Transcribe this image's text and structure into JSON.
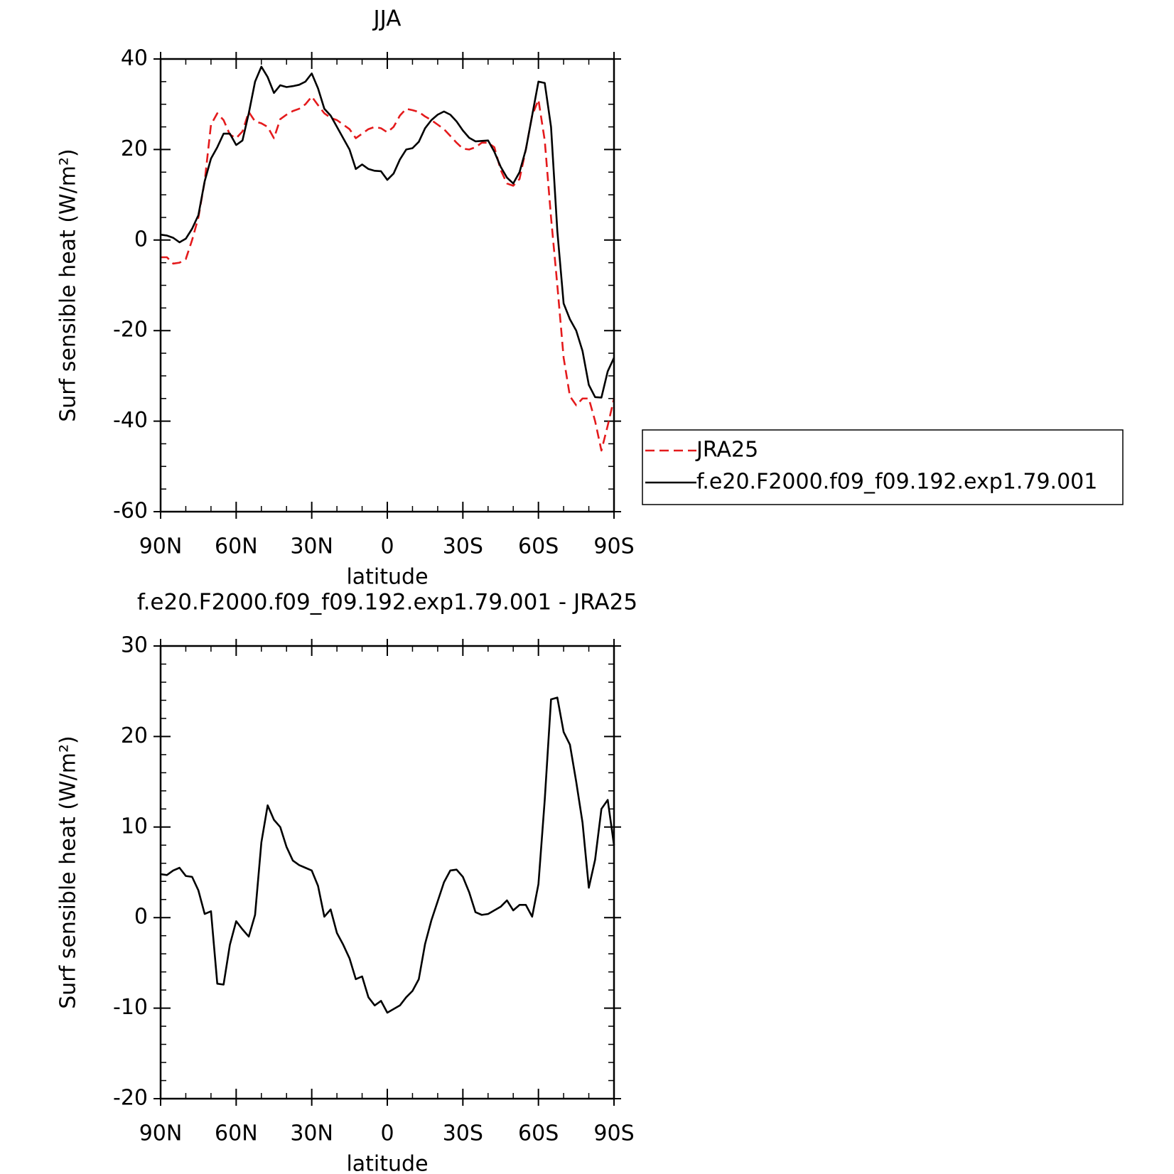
{
  "chart_data": [
    {
      "type": "line",
      "title": "JJA",
      "xlabel": "latitude",
      "ylabel": "Surf sensible heat (W/m²)",
      "xlim": [
        90,
        -90
      ],
      "ylim": [
        -60,
        40
      ],
      "xticks": [
        {
          "value": 90,
          "label": "90N"
        },
        {
          "value": 60,
          "label": "60N"
        },
        {
          "value": 30,
          "label": "30N"
        },
        0,
        {
          "value": -30,
          "label": "30S"
        },
        {
          "value": -60,
          "label": "60S"
        },
        {
          "value": -90,
          "label": "90S"
        }
      ],
      "xminorticks": [
        80,
        70,
        50,
        40,
        20,
        10,
        -10,
        -20,
        -40,
        -50,
        -70,
        -80
      ],
      "yticks": [
        40,
        20,
        0,
        -20,
        -40,
        -60
      ],
      "yminorticks": [
        35,
        30,
        25,
        15,
        10,
        5,
        -5,
        -10,
        -15,
        -25,
        -30,
        -35,
        -45,
        -50,
        -55
      ],
      "legend": "right",
      "x": [
        90,
        87.5,
        85,
        82.5,
        80,
        77.5,
        75,
        72.5,
        70,
        67.5,
        65,
        62.5,
        60,
        57.5,
        55,
        52.5,
        50,
        47.5,
        45,
        42.5,
        40,
        37.5,
        35,
        32.5,
        30,
        27.5,
        25,
        22.5,
        20,
        17.5,
        15,
        12.5,
        10,
        7.5,
        5,
        2.5,
        0,
        -2.5,
        -5,
        -7.5,
        -10,
        -12.5,
        -15,
        -17.5,
        -20,
        -22.5,
        -25,
        -27.5,
        -30,
        -32.5,
        -35,
        -37.5,
        -40,
        -42.5,
        -45,
        -47.5,
        -50,
        -52.5,
        -55,
        -57.5,
        -60,
        -62.5,
        -65,
        -67.5,
        -70,
        -72.5,
        -75,
        -77.5,
        -80,
        -82.5,
        -85,
        -87.5,
        -90
      ],
      "series": [
        {
          "name": "JRA25",
          "color": "#e41a1c",
          "dash": "dashed",
          "values": [
            -3.8,
            -3.8,
            -5.2,
            -5,
            -4.2,
            0,
            5,
            13,
            25.5,
            28,
            26.5,
            23.3,
            22.5,
            24,
            28.3,
            26.2,
            25.8,
            25,
            22.5,
            26.7,
            27.7,
            28.5,
            29,
            30,
            31.7,
            29.8,
            28,
            27,
            26.5,
            25.5,
            24.5,
            22.5,
            23.5,
            24.5,
            25,
            24.7,
            23.8,
            25,
            27.5,
            29,
            28.7,
            28.3,
            27.3,
            26.5,
            25.5,
            24.5,
            23,
            21.5,
            20.2,
            20,
            20.5,
            21.5,
            21.5,
            20.5,
            15.5,
            12.5,
            12,
            13.5,
            20,
            27.5,
            31,
            22,
            5,
            -10,
            -26,
            -34.5,
            -36.5,
            -35,
            -35,
            -40,
            -46.5,
            -41,
            -35
          ]
        },
        {
          "name": "f.e20.F2000.f09_f09.192.exp1.79.001",
          "color": "#000000",
          "dash": "solid",
          "values": [
            1.2,
            1,
            0.5,
            -0.5,
            0.3,
            2.5,
            5.5,
            13,
            18,
            20.5,
            23.5,
            23.5,
            21,
            22,
            28,
            35,
            38.3,
            36,
            32.5,
            34.2,
            33.8,
            34,
            34.3,
            35,
            36.8,
            33.5,
            29,
            27.5,
            25,
            22.5,
            20,
            15.7,
            16.7,
            15.7,
            15.3,
            15.2,
            13.3,
            14.7,
            17.8,
            20,
            20.3,
            21.7,
            24.7,
            26.5,
            27.7,
            28.4,
            27.7,
            26.2,
            24.2,
            22.6,
            21.8,
            21.9,
            22,
            19.5,
            16.2,
            13.8,
            12.5,
            15,
            20,
            27.5,
            35,
            34.7,
            25,
            2,
            -14,
            -17.5,
            -20,
            -24.5,
            -32,
            -34.7,
            -34.8,
            -29,
            -26
          ]
        }
      ]
    },
    {
      "type": "line",
      "title": "f.e20.F2000.f09_f09.192.exp1.79.001 - JRA25",
      "xlabel": "latitude",
      "ylabel": "Surf sensible heat (W/m²)",
      "xlim": [
        90,
        -90
      ],
      "ylim": [
        -20,
        30
      ],
      "xticks": [
        {
          "value": 90,
          "label": "90N"
        },
        {
          "value": 60,
          "label": "60N"
        },
        {
          "value": 30,
          "label": "30N"
        },
        0,
        {
          "value": -30,
          "label": "30S"
        },
        {
          "value": -60,
          "label": "60S"
        },
        {
          "value": -90,
          "label": "90S"
        }
      ],
      "xminorticks": [
        80,
        70,
        50,
        40,
        20,
        10,
        -10,
        -20,
        -40,
        -50,
        -70,
        -80
      ],
      "yticks": [
        30,
        20,
        10,
        0,
        -10,
        -20
      ],
      "yminorticks": [
        28,
        26,
        24,
        22,
        18,
        16,
        14,
        12,
        8,
        6,
        4,
        2,
        -2,
        -4,
        -6,
        -8,
        -12,
        -14,
        -16,
        -18
      ],
      "x": [
        90,
        87.5,
        85,
        82.5,
        80,
        77.5,
        75,
        72.5,
        70,
        67.5,
        65,
        62.5,
        60,
        57.5,
        55,
        52.5,
        50,
        47.5,
        45,
        42.5,
        40,
        37.5,
        35,
        32.5,
        30,
        27.5,
        25,
        22.5,
        20,
        17.5,
        15,
        12.5,
        10,
        7.5,
        5,
        2.5,
        0,
        -2.5,
        -5,
        -7.5,
        -10,
        -12.5,
        -15,
        -17.5,
        -20,
        -22.5,
        -25,
        -27.5,
        -30,
        -32.5,
        -35,
        -37.5,
        -40,
        -42.5,
        -45,
        -47.5,
        -50,
        -52.5,
        -55,
        -57.5,
        -60,
        -62.5,
        -65,
        -67.5,
        -70,
        -72.5,
        -75,
        -77.5,
        -80,
        -82.5,
        -85,
        -87.5,
        -90
      ],
      "series": [
        {
          "color": "#000000",
          "dash": "solid",
          "values": [
            4.8,
            4.7,
            5.2,
            5.5,
            4.6,
            4.5,
            3,
            0.4,
            0.7,
            -7.3,
            -7.4,
            -3,
            -0.4,
            -1.3,
            -2.1,
            0.3,
            8.3,
            12.4,
            10.8,
            10,
            7.8,
            6.3,
            5.8,
            5.5,
            5.2,
            3.5,
            0.1,
            0.9,
            -1.7,
            -3,
            -4.5,
            -6.8,
            -6.5,
            -8.8,
            -9.7,
            -9.2,
            -10.5,
            -10.1,
            -9.7,
            -8.8,
            -8.1,
            -6.8,
            -2.9,
            -0.3,
            1.8,
            3.9,
            5.2,
            5.3,
            4.5,
            2.8,
            0.6,
            0.3,
            0.4,
            0.8,
            1.2,
            1.9,
            0.8,
            1.4,
            1.4,
            0.1,
            3.7,
            13,
            24.1,
            24.3,
            20.5,
            19.1,
            15,
            10.5,
            3.3,
            6.4,
            12,
            13,
            8
          ]
        }
      ]
    }
  ]
}
